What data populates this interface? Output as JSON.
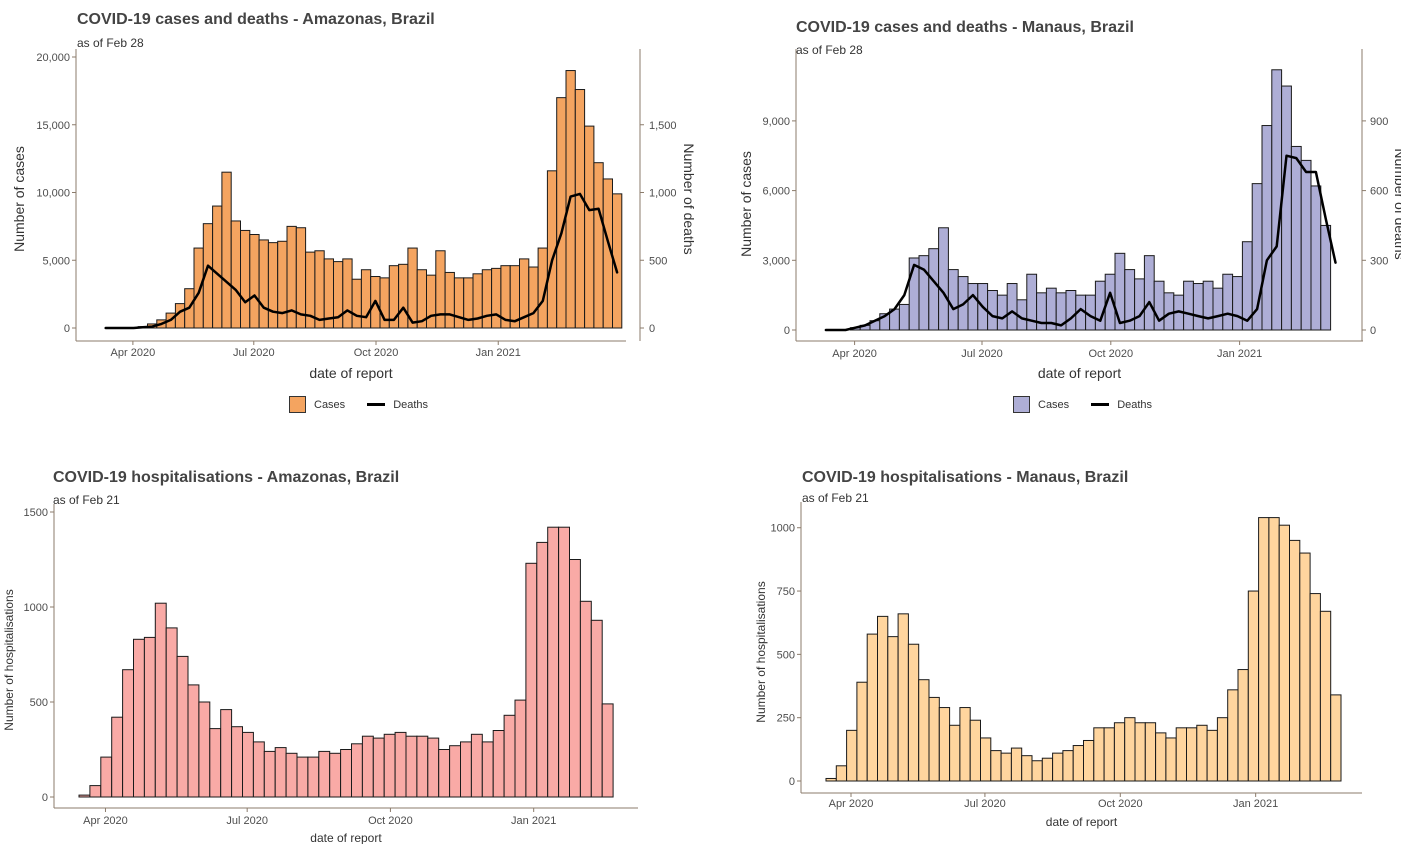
{
  "chart_data": [
    {
      "id": "amazonas_cases",
      "type": "bar",
      "title": "COVID-19 cases and deaths - Amazonas, Brazil",
      "subtitle": "as of Feb 28",
      "xlabel": "date of report",
      "ylabel": "Number of cases",
      "y2label": "Number of deaths",
      "x_ticks": [
        "Apr 2020",
        "Jul 2020",
        "Oct 2020",
        "Jan 2021"
      ],
      "y_ticks": [
        "0",
        "5,000",
        "10,000",
        "15,000",
        "20,000"
      ],
      "y2_ticks": [
        "0",
        "500",
        "1,000",
        "1,500"
      ],
      "ylim": [
        0,
        20000
      ],
      "y2lim": [
        0,
        2000
      ],
      "start_date": "2020-03-08",
      "bar_color": "#F4A460",
      "legend_position": "bottom",
      "legend": [
        {
          "name": "Cases",
          "color": "#F4A460",
          "kind": "bar"
        },
        {
          "name": "Deaths",
          "color": "#000000",
          "kind": "line"
        }
      ],
      "series": [
        {
          "name": "Cases",
          "kind": "bar",
          "values": [
            0,
            0,
            0,
            0,
            100,
            300,
            600,
            1100,
            1800,
            2900,
            5900,
            7700,
            9000,
            11500,
            7900,
            7200,
            6900,
            6500,
            6300,
            6400,
            7500,
            7400,
            5600,
            5700,
            5100,
            4900,
            5100,
            3600,
            4300,
            3800,
            3700,
            4600,
            4700,
            5900,
            4300,
            3900,
            5700,
            4100,
            3700,
            3700,
            4000,
            4300,
            4400,
            4600,
            4600,
            5100,
            4500,
            5900,
            11600,
            17000,
            19000,
            17600,
            14900,
            12200,
            11000,
            9900
          ]
        },
        {
          "name": "Deaths",
          "kind": "line",
          "values": [
            0,
            0,
            0,
            0,
            5,
            10,
            30,
            60,
            120,
            150,
            260,
            460,
            400,
            340,
            280,
            190,
            240,
            150,
            120,
            110,
            130,
            100,
            90,
            60,
            70,
            80,
            130,
            90,
            80,
            200,
            60,
            60,
            150,
            40,
            50,
            90,
            100,
            100,
            80,
            60,
            70,
            90,
            100,
            60,
            50,
            80,
            110,
            200,
            500,
            700,
            970,
            990,
            870,
            880,
            640,
            410
          ]
        }
      ]
    },
    {
      "id": "manaus_cases",
      "type": "bar",
      "title": "COVID-19 cases and deaths - Manaus, Brazil",
      "subtitle": "as of Feb 28",
      "xlabel": "date of report",
      "ylabel": "Number of cases",
      "y2label": "Number of deaths",
      "x_ticks": [
        "Apr 2020",
        "Jul 2020",
        "Oct 2020",
        "Jan 2021"
      ],
      "y_ticks": [
        "0",
        "3,000",
        "6,000",
        "9,000"
      ],
      "y2_ticks": [
        "0",
        "300",
        "600",
        "900"
      ],
      "ylim": [
        0,
        11750
      ],
      "y2lim": [
        0,
        1175
      ],
      "start_date": "2020-03-08",
      "bar_color": "#AEAED6",
      "legend_position": "bottom",
      "legend": [
        {
          "name": "Cases",
          "color": "#AEAED6",
          "kind": "bar"
        },
        {
          "name": "Deaths",
          "color": "#000000",
          "kind": "line"
        }
      ],
      "series": [
        {
          "name": "Cases",
          "kind": "bar",
          "values": [
            0,
            0,
            0,
            100,
            200,
            400,
            700,
            900,
            1100,
            3100,
            3200,
            3500,
            4400,
            2600,
            2300,
            2000,
            2000,
            1700,
            1500,
            2000,
            1300,
            2400,
            1600,
            1800,
            1600,
            1700,
            1500,
            1500,
            2100,
            2400,
            3300,
            2600,
            2200,
            3200,
            2100,
            1600,
            1500,
            2100,
            2000,
            2100,
            1800,
            2400,
            2300,
            3800,
            6300,
            8800,
            11200,
            10500,
            7900,
            7300,
            6200,
            4500
          ]
        },
        {
          "name": "Deaths",
          "kind": "line",
          "values": [
            0,
            0,
            0,
            10,
            20,
            40,
            60,
            90,
            150,
            280,
            260,
            210,
            160,
            90,
            110,
            150,
            100,
            60,
            50,
            80,
            50,
            40,
            30,
            30,
            20,
            50,
            90,
            60,
            40,
            160,
            30,
            40,
            60,
            120,
            40,
            70,
            80,
            70,
            60,
            50,
            60,
            70,
            60,
            40,
            90,
            300,
            360,
            750,
            740,
            680,
            680,
            480,
            290
          ]
        }
      ]
    },
    {
      "id": "amazonas_hosp",
      "type": "bar",
      "title": "COVID-19 hospitalisations - Amazonas, Brazil",
      "subtitle": "as of Feb 21",
      "xlabel": "date of report",
      "ylabel": "Number of hospitalisations",
      "x_ticks": [
        "Apr 2020",
        "Jul 2020",
        "Oct 2020",
        "Jan 2021"
      ],
      "y_ticks": [
        "0",
        "500",
        "1000",
        "1500"
      ],
      "ylim": [
        0,
        1500
      ],
      "start_date": "2020-03-15",
      "bar_color": "#F9AAA6",
      "series": [
        {
          "name": "Hospitalisations",
          "kind": "bar",
          "values": [
            10,
            60,
            210,
            420,
            670,
            830,
            840,
            1020,
            890,
            740,
            590,
            500,
            360,
            460,
            370,
            340,
            290,
            240,
            260,
            230,
            210,
            210,
            240,
            230,
            250,
            280,
            320,
            310,
            330,
            340,
            320,
            320,
            310,
            250,
            270,
            290,
            330,
            290,
            350,
            430,
            510,
            1230,
            1340,
            1420,
            1420,
            1250,
            1030,
            930,
            490
          ]
        }
      ]
    },
    {
      "id": "manaus_hosp",
      "type": "bar",
      "title": "COVID-19 hospitalisations - Manaus, Brazil",
      "subtitle": "as of Feb 21",
      "xlabel": "date of report",
      "ylabel": "Number of hospitalisations",
      "x_ticks": [
        "Apr 2020",
        "Jul 2020",
        "Oct 2020",
        "Jan 2021"
      ],
      "y_ticks": [
        "0",
        "250",
        "500",
        "750",
        "1000"
      ],
      "ylim": [
        0,
        1070
      ],
      "start_date": "2020-03-15",
      "bar_color": "#FFD59E",
      "series": [
        {
          "name": "Hospitalisations",
          "kind": "bar",
          "values": [
            10,
            60,
            200,
            390,
            580,
            650,
            570,
            660,
            540,
            400,
            330,
            290,
            220,
            290,
            240,
            170,
            120,
            110,
            130,
            100,
            80,
            90,
            110,
            120,
            140,
            160,
            210,
            210,
            230,
            250,
            230,
            230,
            190,
            170,
            210,
            210,
            220,
            200,
            250,
            360,
            440,
            750,
            1040,
            1040,
            1010,
            950,
            900,
            740,
            670,
            340
          ]
        }
      ]
    }
  ]
}
